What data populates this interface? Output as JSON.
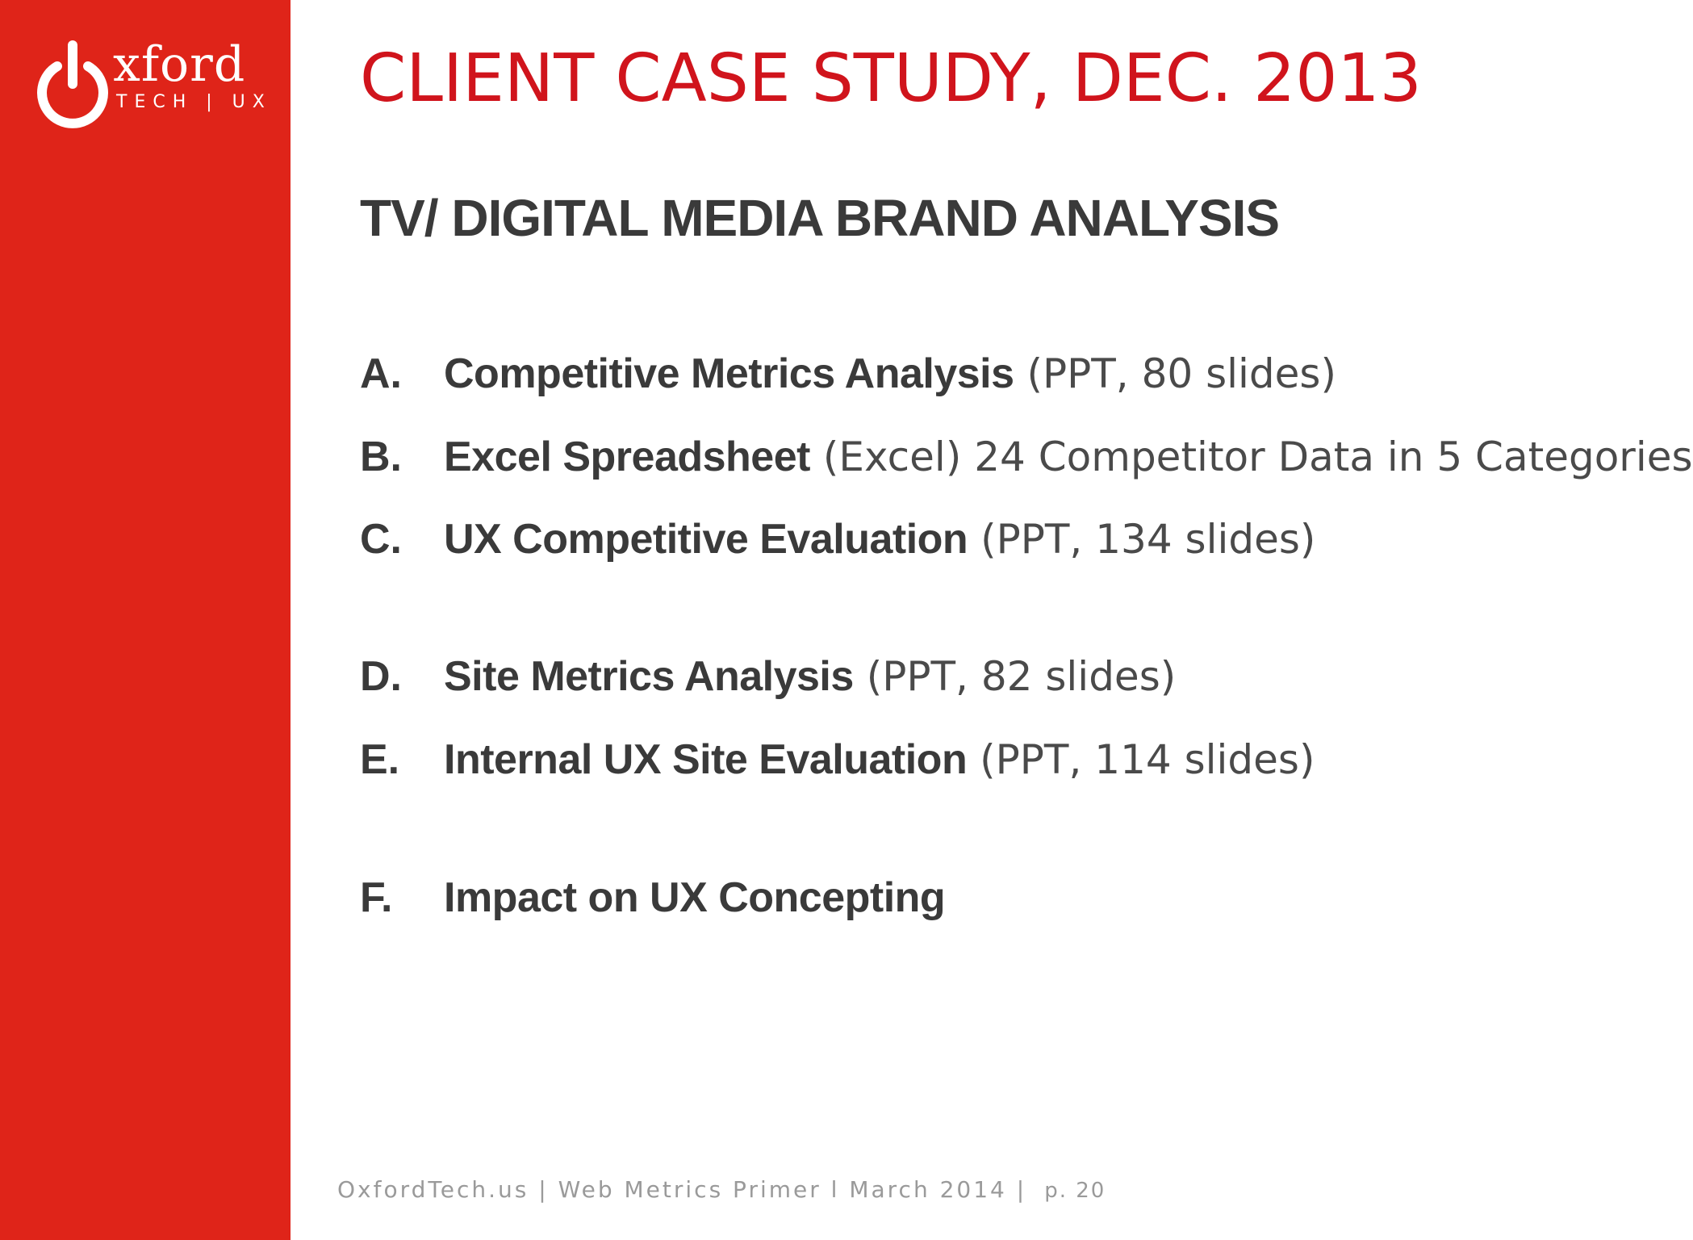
{
  "logo": {
    "icon": "power-button-icon",
    "wordmark": "xford",
    "tagline": "TECH | UX"
  },
  "title": "CLIENT CASE STUDY, DEC. 2013",
  "subtitle": "TV/ DIGITAL MEDIA BRAND ANALYSIS",
  "items": [
    {
      "letter": "A.",
      "name": "Competitive Metrics Analysis",
      "detail": " (PPT, 80 slides)"
    },
    {
      "letter": "B.",
      "name": "Excel Spreadsheet",
      "detail": " (Excel) 24 Competitor Data in 5 Categories"
    },
    {
      "letter": "C.",
      "name": "UX Competitive Evaluation",
      "detail": " (PPT, 134 slides)"
    },
    {
      "letter": "D.",
      "name": "Site Metrics Analysis",
      "detail": " (PPT, 82 slides)"
    },
    {
      "letter": "E.",
      "name": "Internal UX Site Evaluation",
      "detail": " (PPT, 114 slides)"
    },
    {
      "letter": "F.",
      "name": "Impact on UX Concepting",
      "detail": ""
    }
  ],
  "footer": {
    "text": "OxfordTech.us | Web Metrics Primer l March 2014 |",
    "page": "p. 20"
  },
  "colors": {
    "sidebar": "#df2419",
    "title": "#d0141c",
    "body_text": "#3a3a3a",
    "footer_text": "#9a9a9a"
  }
}
